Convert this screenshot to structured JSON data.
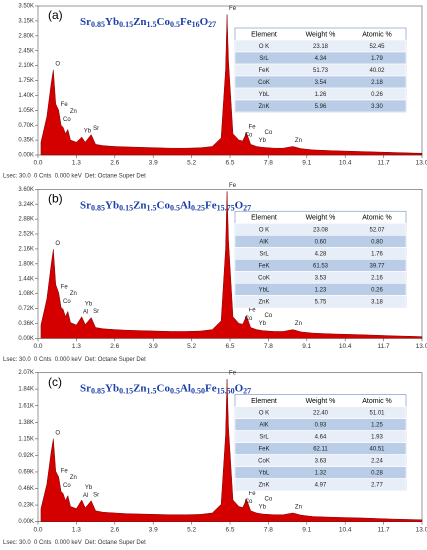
{
  "chart_data": [
    {
      "type": "area",
      "panel_label": "(a)",
      "title": "Sr0.85Yb0.15Zn1.5Co0.5Fe16O27",
      "color": "#d40000",
      "x": [
        0.1,
        0.3,
        0.45,
        0.52,
        0.6,
        0.7,
        0.78,
        0.85,
        0.93,
        1.01,
        1.1,
        1.3,
        1.48,
        1.6,
        1.8,
        1.95,
        2.2,
        2.6,
        3.0,
        3.5,
        4.0,
        4.5,
        5.0,
        5.5,
        5.9,
        6.2,
        6.35,
        6.4,
        6.45,
        6.6,
        6.8,
        6.93,
        7.06,
        7.2,
        7.4,
        7.6,
        8.0,
        8.3,
        8.63,
        8.9,
        9.3,
        10.0,
        11.0,
        12.0,
        13.0
      ],
      "values": [
        300,
        900,
        1700,
        2000,
        1200,
        1050,
        700,
        650,
        500,
        600,
        350,
        300,
        420,
        300,
        480,
        250,
        220,
        200,
        190,
        180,
        170,
        160,
        160,
        170,
        200,
        400,
        2000,
        3300,
        2200,
        500,
        350,
        330,
        520,
        250,
        200,
        180,
        160,
        160,
        200,
        150,
        120,
        100,
        80,
        60,
        40
      ],
      "xlim": [
        0,
        13
      ],
      "xticks": [
        {
          "value": 0,
          "label": "0.0"
        },
        1.3,
        2.6,
        3.9,
        5.2,
        6.5,
        7.8,
        9.1,
        10.4,
        11.7,
        {
          "value": 13,
          "label": "13.0"
        }
      ],
      "ylim": [
        0,
        3500
      ],
      "yticks": [
        {
          "value": 0,
          "label": "0.00K"
        },
        {
          "value": 350,
          "label": "0.35K"
        },
        {
          "value": 700,
          "label": "0.70K"
        },
        {
          "value": 1050,
          "label": "1.05K"
        },
        {
          "value": 1400,
          "label": "1.40K"
        },
        {
          "value": 1750,
          "label": "1.75K"
        },
        {
          "value": 2100,
          "label": "2.10K"
        },
        {
          "value": 2450,
          "label": "2.45K"
        },
        {
          "value": 2800,
          "label": "2.80K"
        },
        {
          "value": 3150,
          "label": "3.15K"
        },
        {
          "value": 3500,
          "label": "3.50K"
        }
      ],
      "annotations": [
        {
          "text": "O",
          "x": 0.52
        },
        {
          "text": "Fe",
          "x": 0.7
        },
        {
          "text": "Co",
          "x": 0.78
        },
        {
          "text": "Zn",
          "x": 1.01
        },
        {
          "text": "Yb",
          "x": 1.48
        },
        {
          "text": "Sr",
          "x": 1.8
        },
        {
          "text": "Fe",
          "x": 6.4
        },
        {
          "text": "Co",
          "x": 6.93
        },
        {
          "text": "Fe",
          "x": 7.06
        },
        {
          "text": "Yb",
          "x": 7.4
        },
        {
          "text": "Co",
          "x": 7.6
        },
        {
          "text": "Zn",
          "x": 8.63
        }
      ],
      "table": {
        "header": [
          "Element",
          "Weight %",
          "Atomic %"
        ],
        "rows": [
          [
            "O K",
            "23.18",
            "52.45"
          ],
          [
            "SrL",
            "4.34",
            "1.79"
          ],
          [
            "FeK",
            "51.73",
            "40.02"
          ],
          [
            "CoK",
            "3.54",
            "2.18"
          ],
          [
            "YbL",
            "1.26",
            "0.26"
          ],
          [
            "ZnK",
            "5.96",
            "3.30"
          ]
        ]
      },
      "footer": "Lsec: 30.0  0 Cnts  0.000 keV  Det: Octane Super Det"
    },
    {
      "type": "area",
      "panel_label": "(b)",
      "title": "Sr0.85Yb0.15Zn1.5Co0.5Al0.25Fe15.75O27",
      "color": "#d40000",
      "x": [
        0.1,
        0.3,
        0.45,
        0.52,
        0.6,
        0.7,
        0.78,
        0.85,
        0.93,
        1.01,
        1.1,
        1.3,
        1.48,
        1.6,
        1.8,
        1.95,
        2.2,
        2.6,
        3.0,
        3.5,
        4.0,
        4.5,
        5.0,
        5.5,
        5.9,
        6.2,
        6.35,
        6.4,
        6.45,
        6.6,
        6.8,
        6.93,
        7.06,
        7.2,
        7.4,
        7.6,
        8.0,
        8.3,
        8.63,
        8.9,
        9.3,
        10.0,
        11.0,
        12.0,
        13.0
      ],
      "values": [
        320,
        950,
        1800,
        2150,
        1300,
        1100,
        750,
        700,
        520,
        650,
        380,
        320,
        520,
        330,
        500,
        260,
        230,
        210,
        195,
        185,
        175,
        165,
        165,
        175,
        210,
        420,
        2150,
        3550,
        2350,
        520,
        360,
        340,
        540,
        260,
        210,
        185,
        165,
        165,
        210,
        155,
        125,
        105,
        85,
        60,
        40
      ],
      "xlim": [
        0,
        13
      ],
      "xticks": [
        {
          "value": 0,
          "label": "0.0"
        },
        1.3,
        2.6,
        3.9,
        5.2,
        6.5,
        7.8,
        9.1,
        10.4,
        11.7,
        {
          "value": 13,
          "label": "13.0"
        }
      ],
      "ylim": [
        0,
        3600
      ],
      "yticks": [
        {
          "value": 0,
          "label": "0.00K"
        },
        {
          "value": 360,
          "label": "0.36K"
        },
        {
          "value": 720,
          "label": "0.72K"
        },
        {
          "value": 1080,
          "label": "1.08K"
        },
        {
          "value": 1440,
          "label": "1.44K"
        },
        {
          "value": 1800,
          "label": "1.80K"
        },
        {
          "value": 2160,
          "label": "2.16K"
        },
        {
          "value": 2520,
          "label": "2.52K"
        },
        {
          "value": 2880,
          "label": "2.88K"
        },
        {
          "value": 3240,
          "label": "3.24K"
        },
        {
          "value": 3600,
          "label": "3.60K"
        }
      ],
      "annotations": [
        {
          "text": "O",
          "x": 0.52
        },
        {
          "text": "Fe",
          "x": 0.7
        },
        {
          "text": "Co",
          "x": 0.78
        },
        {
          "text": "Zn",
          "x": 1.01
        },
        {
          "text": "Al",
          "x": 1.45
        },
        {
          "text": "Yb",
          "x": 1.52
        },
        {
          "text": "Sr",
          "x": 1.8
        },
        {
          "text": "Fe",
          "x": 6.4
        },
        {
          "text": "Co",
          "x": 6.93
        },
        {
          "text": "Fe",
          "x": 7.06
        },
        {
          "text": "Yb",
          "x": 7.4
        },
        {
          "text": "Co",
          "x": 7.6
        },
        {
          "text": "Zn",
          "x": 8.63
        }
      ],
      "table": {
        "header": [
          "Element",
          "Weight %",
          "Atomic %"
        ],
        "rows": [
          [
            "O K",
            "23.08",
            "52.07"
          ],
          [
            "AlK",
            "0.60",
            "0.80"
          ],
          [
            "SrL",
            "4.28",
            "1.76"
          ],
          [
            "FeK",
            "61.53",
            "39.77"
          ],
          [
            "CoK",
            "3.53",
            "2.16"
          ],
          [
            "YbL",
            "1.23",
            "0.26"
          ],
          [
            "ZnK",
            "5.75",
            "3.18"
          ]
        ]
      },
      "footer": "Lsec: 30.0  0 Cnts  0.000 keV  Det: Octane Super Det"
    },
    {
      "type": "area",
      "panel_label": "(c)",
      "title": "Sr0.85Yb0.15Zn1.5Co0.5Al0.50Fe15.50O27",
      "color": "#d40000",
      "x": [
        0.1,
        0.3,
        0.45,
        0.52,
        0.6,
        0.7,
        0.78,
        0.85,
        0.93,
        1.01,
        1.1,
        1.3,
        1.48,
        1.6,
        1.8,
        1.95,
        2.2,
        2.6,
        3.0,
        3.5,
        4.0,
        4.5,
        5.0,
        5.5,
        5.9,
        6.2,
        6.35,
        6.4,
        6.45,
        6.6,
        6.8,
        6.93,
        7.06,
        7.2,
        7.4,
        7.6,
        8.0,
        8.3,
        8.63,
        8.9,
        9.3,
        10.0,
        11.0,
        12.0,
        13.0
      ],
      "values": [
        180,
        520,
        980,
        1150,
        700,
        620,
        420,
        390,
        290,
        360,
        210,
        180,
        300,
        190,
        290,
        150,
        130,
        120,
        110,
        105,
        100,
        95,
        95,
        100,
        120,
        240,
        1200,
        1980,
        1300,
        300,
        210,
        195,
        310,
        150,
        120,
        105,
        95,
        95,
        120,
        90,
        70,
        60,
        50,
        35,
        25
      ],
      "xlim": [
        0,
        13
      ],
      "xticks": [
        {
          "value": 0,
          "label": "0.0"
        },
        1.3,
        2.6,
        3.9,
        5.2,
        6.5,
        7.8,
        9.1,
        10.4,
        11.7,
        {
          "value": 13,
          "label": "13.0"
        }
      ],
      "ylim": [
        0,
        2070
      ],
      "yticks": [
        {
          "value": 0,
          "label": "0.00K"
        },
        {
          "value": 230,
          "label": "0.23K"
        },
        {
          "value": 460,
          "label": "0.46K"
        },
        {
          "value": 690,
          "label": "0.69K"
        },
        {
          "value": 920,
          "label": "0.92K"
        },
        {
          "value": 1150,
          "label": "1.15K"
        },
        {
          "value": 1380,
          "label": "1.38K"
        },
        {
          "value": 1610,
          "label": "1.61K"
        },
        {
          "value": 1840,
          "label": "1.84K"
        },
        {
          "value": 2070,
          "label": "2.07K"
        }
      ],
      "annotations": [
        {
          "text": "O",
          "x": 0.52
        },
        {
          "text": "Fe",
          "x": 0.7
        },
        {
          "text": "Co",
          "x": 0.78
        },
        {
          "text": "Zn",
          "x": 1.01
        },
        {
          "text": "Al",
          "x": 1.45
        },
        {
          "text": "Yb",
          "x": 1.52
        },
        {
          "text": "Sr",
          "x": 1.8
        },
        {
          "text": "Fe",
          "x": 6.4
        },
        {
          "text": "Co",
          "x": 6.93
        },
        {
          "text": "Fe",
          "x": 7.06
        },
        {
          "text": "Yb",
          "x": 7.4
        },
        {
          "text": "Co",
          "x": 7.6
        },
        {
          "text": "Zn",
          "x": 8.63
        }
      ],
      "table": {
        "header": [
          "Element",
          "Weight %",
          "Atomic %"
        ],
        "rows": [
          [
            "O K",
            "22.40",
            "51.01"
          ],
          [
            "AlK",
            "0.93",
            "1.25"
          ],
          [
            "SrL",
            "4.64",
            "1.93"
          ],
          [
            "FeK",
            "62.11",
            "40.51"
          ],
          [
            "CoK",
            "3.63",
            "2.24"
          ],
          [
            "YbL",
            "1.32",
            "0.28"
          ],
          [
            "ZnK",
            "4.97",
            "2.77"
          ]
        ]
      },
      "footer": "Lsec: 30.0  0 Cnts  0.000 keV  Det: Octane Super Det"
    }
  ]
}
